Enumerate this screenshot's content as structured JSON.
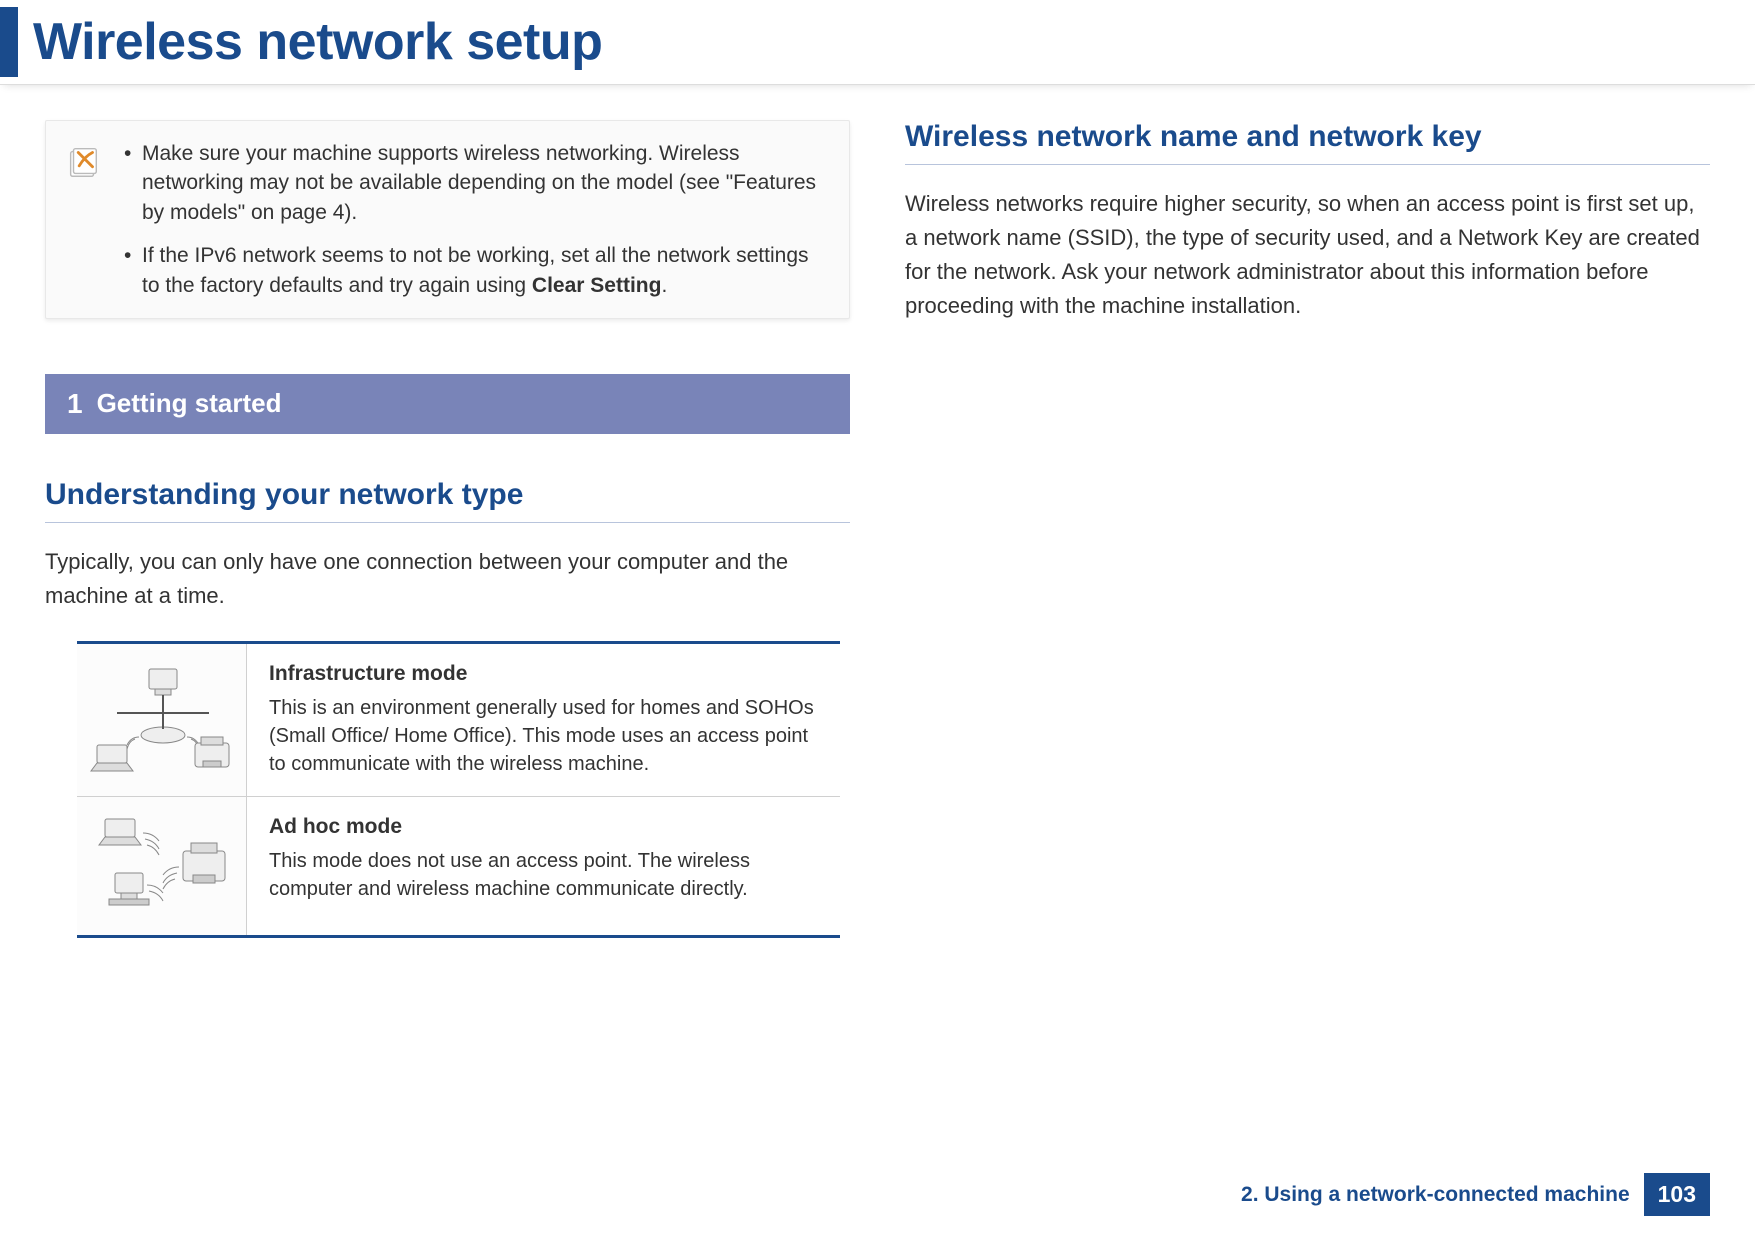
{
  "header": {
    "title": "Wireless network setup",
    "accent_color": "#1a4b8c"
  },
  "note_box": {
    "items": [
      "Make sure your machine supports wireless networking. Wireless networking may not be available depending on the model (see \"Features by models\" on page 4).",
      "If the IPv6 network seems to not be working, set all the network settings to the factory defaults and try again using <b>Clear Setting</b>."
    ]
  },
  "section_bar": {
    "number": "1",
    "title": "Getting started",
    "bg_color": "#7984b8"
  },
  "left": {
    "subheading": "Understanding your network type",
    "intro": "Typically, you can only have one connection between your computer and the machine at a time.",
    "modes": [
      {
        "title": "Infrastructure mode",
        "desc": "This is an environment generally used for homes and SOHOs (Small Office/ Home Office). This mode uses an access point to communicate with the wireless machine."
      },
      {
        "title": "Ad hoc mode",
        "desc": "This mode does not use an access point. The wireless computer and wireless machine communicate directly."
      }
    ]
  },
  "right": {
    "subheading": "Wireless network name and network key",
    "body": "Wireless networks require higher security, so when an access point is first set up, a network name (SSID), the type of security used, and a Network Key are created for the network. Ask your network administrator about this information before proceeding with the machine installation."
  },
  "footer": {
    "chapter": "2. Using a network-connected machine",
    "page": "103"
  }
}
